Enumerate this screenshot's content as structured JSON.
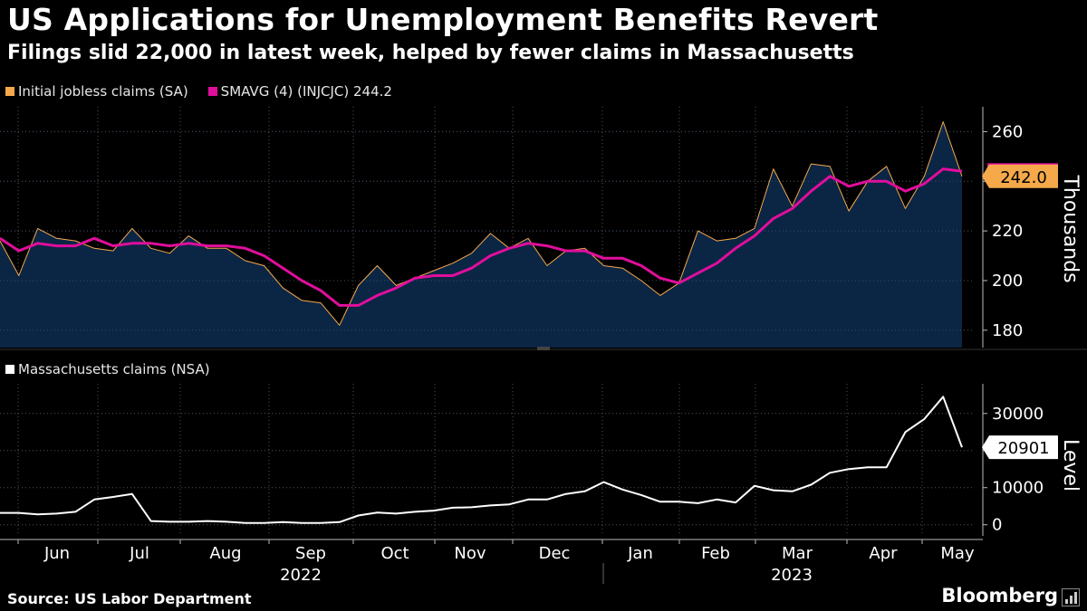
{
  "title": "US Applications for Unemployment Benefits Revert",
  "subtitle": "Filings slid 22,000 in latest week, helped by fewer claims in Massachusetts",
  "source": "Source: US Labor Department",
  "brand": "Bloomberg",
  "colors": {
    "initial_claims": "#f5a94a",
    "smavg": "#e00e9c",
    "area_fill": "#0b2545",
    "massachusetts": "#ffffff",
    "grid": "#555555"
  },
  "chart_data": [
    {
      "type": "area",
      "panel": "top",
      "ylabel": "Thousands",
      "ylim": [
        173,
        270
      ],
      "yticks": [
        180,
        200,
        220,
        240,
        260
      ],
      "grid": true,
      "legend_position": "top-left",
      "series": [
        {
          "name": "Initial jobless claims (SA)",
          "color": "#f5a94a",
          "last_label": "242.0",
          "values": [
            216,
            202,
            221,
            217,
            216,
            213,
            212,
            221,
            213,
            211,
            218,
            213,
            213,
            208,
            206,
            197,
            192,
            191,
            182,
            198,
            206,
            198,
            201,
            204,
            207,
            211,
            219,
            213,
            217,
            206,
            212,
            213,
            206,
            205,
            200,
            194,
            199,
            220,
            216,
            217,
            221,
            245,
            230,
            247,
            246,
            228,
            240,
            246,
            229,
            242,
            264,
            242
          ]
        },
        {
          "name": "SMAVG (4) (INJCJC) 244.2",
          "color": "#e00e9c",
          "values": [
            217,
            212,
            215,
            214,
            214,
            217,
            214,
            215,
            215,
            214,
            215,
            214,
            214,
            213,
            210,
            205,
            200,
            196,
            190,
            190,
            194,
            197,
            201,
            202,
            202,
            205,
            210,
            213,
            215,
            214,
            212,
            212,
            209,
            209,
            206,
            201,
            199,
            203,
            207,
            213,
            218,
            225,
            229,
            236,
            242,
            238,
            240,
            240,
            236,
            239,
            245,
            244
          ]
        }
      ]
    },
    {
      "type": "line",
      "panel": "bottom",
      "ylabel": "Level",
      "ylim": [
        -3000,
        38000
      ],
      "yticks": [
        0,
        10000,
        20000,
        30000
      ],
      "grid": true,
      "legend_position": "top-left",
      "series": [
        {
          "name": "Massachusetts claims (NSA)",
          "color": "#ffffff",
          "last_label": "20901",
          "values": [
            3200,
            3200,
            2800,
            3000,
            3500,
            6800,
            7500,
            8300,
            1000,
            800,
            800,
            1000,
            800,
            500,
            500,
            700,
            500,
            500,
            700,
            2500,
            3300,
            3000,
            3500,
            3800,
            4600,
            4700,
            5200,
            5500,
            6800,
            6800,
            8300,
            9000,
            11500,
            9500,
            8000,
            6200,
            6200,
            5800,
            6800,
            6000,
            10500,
            9300,
            9000,
            10800,
            14000,
            15000,
            15500,
            15500,
            25000,
            28500,
            34500,
            20901
          ]
        }
      ]
    }
  ],
  "x_axis": {
    "month_labels": [
      "Jun",
      "Jul",
      "Aug",
      "Sep",
      "Oct",
      "Nov",
      "Dec",
      "Jan",
      "Feb",
      "Mar",
      "Apr",
      "May"
    ],
    "year_labels": [
      "2022",
      "2023"
    ]
  }
}
